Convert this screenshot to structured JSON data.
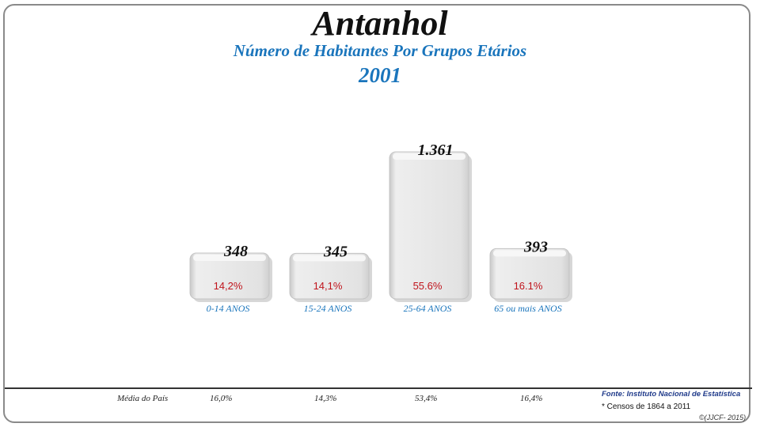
{
  "chart_data": {
    "type": "bar",
    "title": "Antanhol",
    "subtitle": "Número de Habitantes Por Grupos Etários",
    "year": "2001",
    "categories": [
      "0-14 ANOS",
      "15-24 ANOS",
      "25-64 ANOS",
      "65 ou mais ANOS"
    ],
    "values": [
      348,
      345,
      1361,
      393
    ],
    "value_labels": [
      "348",
      "345",
      "1.361",
      "393"
    ],
    "percent_labels": [
      "14,2%",
      "14,1%",
      "55.6%",
      "16.1%"
    ],
    "xlabel": "",
    "ylabel": ""
  },
  "footer": {
    "media_label": "Média do País",
    "media_values": [
      "16,0%",
      "14,3%",
      "53,4%",
      "16,4%"
    ],
    "fonte": "Fonte: Instituto Nacional de Estatística",
    "censos": "* Censos de 1864 a 2011",
    "copyright": "©(JJCF- 2015)"
  },
  "colors": {
    "title_blue": "#1a75bc",
    "percent_red": "#c0141c",
    "bar": "#e4e4e4"
  }
}
